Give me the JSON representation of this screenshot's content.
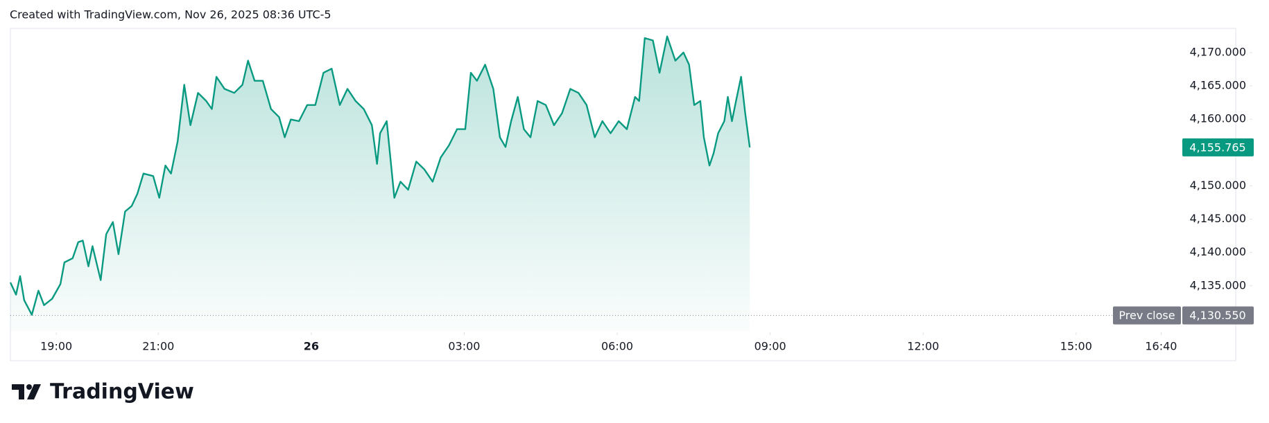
{
  "header": "Created with TradingView.com, Nov 26, 2025 08:36 UTC-5",
  "logo": "TradingView",
  "chart_data": {
    "type": "area",
    "color": "#089981",
    "x": [
      -5.9,
      -5.79,
      -5.71,
      -5.63,
      -5.48,
      -5.35,
      -5.24,
      -5.08,
      -4.92,
      -4.84,
      -4.68,
      -4.57,
      -4.48,
      -4.37,
      -4.29,
      -4.13,
      -4.02,
      -3.89,
      -3.78,
      -3.65,
      -3.52,
      -3.41,
      -3.29,
      -3.1,
      -2.98,
      -2.86,
      -2.75,
      -2.62,
      -2.49,
      -2.37,
      -2.22,
      -2.06,
      -1.95,
      -1.86,
      -1.7,
      -1.51,
      -1.35,
      -1.24,
      -1.11,
      -0.95,
      -0.79,
      -0.63,
      -0.52,
      -0.4,
      -0.24,
      -0.08,
      0.08,
      0.24,
      0.4,
      0.56,
      0.71,
      0.87,
      1.03,
      1.19,
      1.29,
      1.35,
      1.48,
      1.63,
      1.75,
      1.9,
      2.06,
      2.22,
      2.38,
      2.54,
      2.7,
      2.86,
      3.02,
      3.13,
      3.25,
      3.41,
      3.57,
      3.7,
      3.81,
      3.92,
      4.05,
      4.17,
      4.3,
      4.44,
      4.6,
      4.76,
      4.92,
      5.08,
      5.24,
      5.4,
      5.56,
      5.71,
      5.87,
      6.03,
      6.19,
      6.35,
      6.43,
      6.54,
      6.7,
      6.83,
      6.98,
      7.14,
      7.3,
      7.41,
      7.51,
      7.63,
      7.7,
      7.81,
      7.89,
      7.98,
      8.1,
      8.17,
      8.25,
      8.33,
      8.43,
      8.51,
      8.6
    ],
    "values": [
      4135.49,
      4133.67,
      4136.45,
      4132.82,
      4130.64,
      4134.27,
      4132.09,
      4133.06,
      4135.24,
      4138.51,
      4139.12,
      4141.54,
      4141.78,
      4137.91,
      4140.94,
      4135.85,
      4142.75,
      4144.57,
      4139.73,
      4146.14,
      4146.99,
      4148.81,
      4151.84,
      4151.47,
      4148.2,
      4153.05,
      4151.84,
      4156.68,
      4165.16,
      4159.1,
      4163.95,
      4162.73,
      4161.52,
      4166.37,
      4164.55,
      4163.95,
      4165.16,
      4168.79,
      4165.76,
      4165.76,
      4161.52,
      4160.31,
      4157.28,
      4159.95,
      4159.71,
      4162.13,
      4162.13,
      4166.97,
      4167.58,
      4162.13,
      4164.55,
      4162.73,
      4161.52,
      4159.1,
      4153.29,
      4157.89,
      4159.71,
      4148.2,
      4150.62,
      4149.41,
      4153.65,
      4152.44,
      4150.62,
      4154.26,
      4156.07,
      4158.5,
      4158.5,
      4166.97,
      4165.76,
      4168.18,
      4164.55,
      4157.28,
      4155.83,
      4159.71,
      4163.34,
      4158.5,
      4157.28,
      4162.73,
      4162.13,
      4159.1,
      4160.92,
      4164.55,
      4163.95,
      4162.13,
      4157.28,
      4159.71,
      4157.89,
      4159.71,
      4158.5,
      4163.34,
      4162.73,
      4172.18,
      4171.82,
      4166.97,
      4172.42,
      4168.79,
      4170.0,
      4168.18,
      4162.13,
      4162.73,
      4157.28,
      4153.05,
      4154.86,
      4157.89,
      4159.71,
      4163.34,
      4159.71,
      4162.73,
      4166.37,
      4160.92,
      4155.765
    ],
    "last_label": "4,155.765",
    "prev_close": {
      "label": "Prev close",
      "value": 4130.55,
      "value_label": "4,130.550"
    },
    "xlim": [
      -5.9,
      18.13
    ],
    "ylim": [
      4128.22,
      4173.63
    ],
    "xticks": [
      {
        "value": -5,
        "label": "19:00"
      },
      {
        "value": -3,
        "label": "21:00"
      },
      0,
      {
        "value": 3,
        "label": "03:00"
      },
      {
        "value": 6,
        "label": "06:00"
      },
      {
        "value": 9,
        "label": "09:00"
      },
      {
        "value": 12,
        "label": "12:00"
      },
      {
        "value": 15,
        "label": "15:00"
      },
      {
        "value": 16.667,
        "label": "16:40"
      }
    ],
    "xtick_day_label": "26",
    "yticks": [
      {
        "value": 4135,
        "label": "4,135.000"
      },
      {
        "value": 4140,
        "label": "4,140.000"
      },
      {
        "value": 4145,
        "label": "4,145.000"
      },
      {
        "value": 4150,
        "label": "4,150.000"
      },
      {
        "value": 4160,
        "label": "4,160.000"
      },
      {
        "value": 4165,
        "label": "4,165.000"
      },
      {
        "value": 4170,
        "label": "4,170.000"
      }
    ]
  }
}
